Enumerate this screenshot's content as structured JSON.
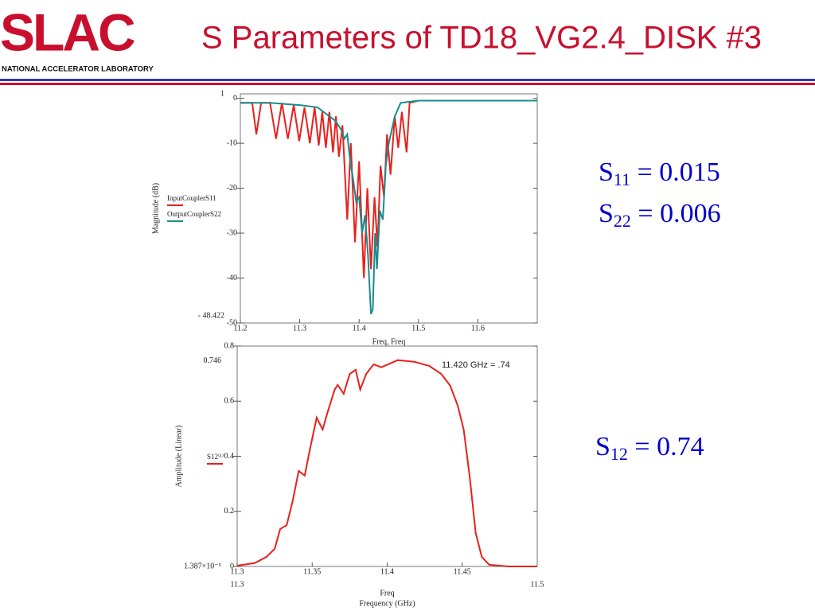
{
  "slide": {
    "logo": "SLAC",
    "logo_subtitle": "NATIONAL ACCELERATOR LABORATORY",
    "title": "S Parameters of TD18_VG2.4_DISK #3",
    "params": [
      {
        "symbol": "S",
        "subscript": "11",
        "value_text": "= 0.015"
      },
      {
        "symbol": "S",
        "subscript": "22",
        "value_text": "= 0.006"
      },
      {
        "symbol": "S",
        "subscript": "12",
        "value_text": "= 0.74"
      }
    ]
  },
  "chart_data": [
    {
      "type": "line",
      "ylabel": "Magnitude (dB)",
      "xlabel": "Freq, Freq",
      "xlim": [
        11.2,
        11.7
      ],
      "ylim": [
        -50,
        1
      ],
      "xticks": [
        11.2,
        11.3,
        11.4,
        11.5,
        11.6
      ],
      "yticks": [
        0,
        -10,
        -20,
        -30,
        -40,
        -50
      ],
      "ymarkers": [
        1,
        {
          "value": -48.422,
          "label": "- 48.422"
        }
      ],
      "series": [
        {
          "name": "InputCouplerS11",
          "color": "#e8201c",
          "x": [
            11.2,
            11.22,
            11.227,
            11.235,
            11.25,
            11.26,
            11.27,
            11.28,
            11.29,
            11.299,
            11.308,
            11.317,
            11.325,
            11.332,
            11.338,
            11.344,
            11.35,
            11.356,
            11.361,
            11.366,
            11.372,
            11.38,
            11.386,
            11.393,
            11.4,
            11.408,
            11.414,
            11.42,
            11.426,
            11.431,
            11.436,
            11.442,
            11.447,
            11.453,
            11.46,
            11.466,
            11.472,
            11.48,
            11.485,
            11.5,
            11.6,
            11.7
          ],
          "values": [
            -1,
            -1,
            -8,
            -1,
            -1,
            -9,
            -1,
            -9,
            -1.5,
            -9.5,
            -2,
            -10,
            -2,
            -10.5,
            -3,
            -11,
            -3,
            -12,
            -4,
            -13,
            -6,
            -27,
            -10,
            -32,
            -14,
            -40,
            -20,
            -38,
            -22,
            -33,
            -15,
            -22,
            -8,
            -17,
            -4,
            -11,
            -3,
            -12,
            -1,
            -0.5,
            -0.5,
            -0.5
          ]
        },
        {
          "name": "OutputCouplerS22",
          "color": "#1a8c8c",
          "x": [
            11.2,
            11.25,
            11.3,
            11.33,
            11.34,
            11.35,
            11.36,
            11.37,
            11.375,
            11.38,
            11.385,
            11.39,
            11.395,
            11.4,
            11.405,
            11.41,
            11.415,
            11.42,
            11.423,
            11.427,
            11.43,
            11.435,
            11.44,
            11.445,
            11.45,
            11.46,
            11.47,
            11.5,
            11.6,
            11.7
          ],
          "values": [
            -1,
            -1,
            -1.5,
            -2,
            -3,
            -4,
            -5,
            -7,
            -9,
            -8,
            -14,
            -18,
            -23,
            -22,
            -30,
            -26,
            -35,
            -48,
            -47,
            -30,
            -38,
            -25,
            -27,
            -15,
            -10,
            -4,
            -1,
            -0.5,
            -0.5,
            -0.5
          ]
        }
      ]
    },
    {
      "type": "line",
      "ylabel": "Amplitude (Linear)",
      "xlabel": "Freq",
      "caption": "Frequency (GHz)",
      "annotation": "11.420 GHz = .74",
      "xlim": [
        11.3,
        11.5
      ],
      "ylim": [
        0,
        0.8
      ],
      "xticks": [
        11.3,
        11.35,
        11.4,
        11.45
      ],
      "xticks2": [
        11.3,
        11.5
      ],
      "yticks": [
        0,
        0.2,
        0.4,
        0.6,
        0.8
      ],
      "ymarkers": [
        0.746,
        {
          "value": 1.387e-05,
          "label": "1.387×10⁻⁵"
        }
      ],
      "series": [
        {
          "name": "S12⁽¹⁾",
          "color": "#e8201c",
          "x": [
            11.3,
            11.3117,
            11.3196,
            11.325,
            11.3287,
            11.333,
            11.337,
            11.341,
            11.345,
            11.349,
            11.353,
            11.357,
            11.36,
            11.365,
            11.367,
            11.371,
            11.375,
            11.379,
            11.382,
            11.386,
            11.391,
            11.396,
            11.402,
            11.407,
            11.418,
            11.428,
            11.436,
            11.442,
            11.447,
            11.451,
            11.455,
            11.459,
            11.463,
            11.468,
            11.481,
            11.5
          ],
          "values": [
            0.003,
            0.012,
            0.035,
            0.064,
            0.136,
            0.15,
            0.237,
            0.347,
            0.33,
            0.439,
            0.54,
            0.497,
            0.555,
            0.642,
            0.659,
            0.627,
            0.699,
            0.714,
            0.642,
            0.699,
            0.734,
            0.723,
            0.737,
            0.749,
            0.743,
            0.728,
            0.699,
            0.656,
            0.584,
            0.497,
            0.324,
            0.121,
            0.035,
            0.006,
            0,
            0
          ]
        }
      ]
    }
  ]
}
